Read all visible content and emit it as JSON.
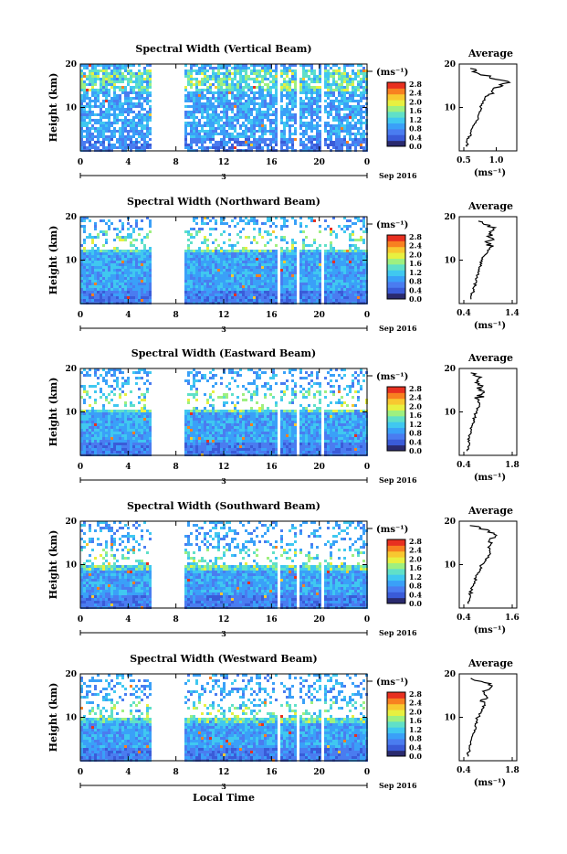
{
  "chart_data": [
    {
      "type": "heatmap",
      "title": "Spectral Width (Vertical Beam)",
      "ylabel": "Height (km)",
      "yticks": [
        "20",
        "10"
      ],
      "xticks": [
        "0",
        "4",
        "8",
        "12",
        "16",
        "20",
        "0"
      ],
      "date_day": "3",
      "date_label": "Sep 2016",
      "colorbar_unit": "(ms⁻¹)",
      "colorbar_ticks": [
        "2.8",
        "2.4",
        "2.0",
        "1.6",
        "1.2",
        "0.8",
        "0.4",
        "0.0"
      ],
      "average_title": "Average",
      "average_xticks": [
        "0.5",
        "1.0"
      ],
      "average_xlabel": "(ms⁻¹)",
      "average_yticks": [
        "20",
        "10"
      ],
      "x_gaps_hours": [
        [
          5.9,
          8.7
        ],
        [
          16.3,
          16.6
        ],
        [
          17.9,
          18.3
        ],
        [
          20.1,
          20.4
        ]
      ],
      "average_profile": {
        "xlim": [
          0.5,
          1.25
        ],
        "height_km": [
          1,
          2,
          3,
          4,
          5,
          6,
          7,
          8,
          9,
          10,
          11,
          12,
          13,
          14,
          15,
          16,
          17,
          18,
          19
        ],
        "width_ms": [
          0.55,
          0.54,
          0.58,
          0.6,
          0.62,
          0.66,
          0.7,
          0.72,
          0.74,
          0.76,
          0.8,
          0.82,
          0.88,
          0.95,
          1.1,
          1.18,
          0.9,
          0.7,
          0.6
        ]
      },
      "top_band_km": 15,
      "avg_xmin_tick_frac": 0.0,
      "avg_xmax_tick_frac": 0.67
    },
    {
      "type": "heatmap",
      "title": "Spectral Width (Northward Beam)",
      "ylabel": "Height (km)",
      "yticks": [
        "20",
        "10"
      ],
      "xticks": [
        "0",
        "4",
        "8",
        "12",
        "16",
        "20",
        "0"
      ],
      "date_day": "3",
      "date_label": "Sep 2016",
      "colorbar_unit": "(ms⁻¹)",
      "colorbar_ticks": [
        "2.8",
        "2.4",
        "2.0",
        "1.6",
        "1.2",
        "0.8",
        "0.4",
        "0.0"
      ],
      "average_title": "Average",
      "average_xticks": [
        "0.4",
        "1.4"
      ],
      "average_xlabel": "(ms⁻¹)",
      "average_yticks": [
        "20",
        "10"
      ],
      "x_gaps_hours": [
        [
          5.9,
          8.7
        ],
        [
          16.3,
          16.6
        ],
        [
          17.9,
          18.3
        ],
        [
          20.1,
          20.4
        ]
      ],
      "average_profile": {
        "xlim": [
          0.4,
          1.4
        ],
        "height_km": [
          1,
          2,
          3,
          4,
          5,
          6,
          7,
          8,
          9,
          10,
          11,
          12,
          13,
          14,
          15,
          16,
          17,
          18,
          19
        ],
        "width_ms": [
          0.55,
          0.56,
          0.6,
          0.62,
          0.66,
          0.68,
          0.7,
          0.72,
          0.74,
          0.76,
          0.82,
          0.9,
          0.95,
          0.88,
          1.0,
          0.92,
          1.02,
          0.95,
          0.7
        ]
      },
      "top_band_km": 13,
      "avg_xmin_tick_frac": 0.0,
      "avg_xmax_tick_frac": 1.0
    },
    {
      "type": "heatmap",
      "title": "Spectral Width (Eastward Beam)",
      "ylabel": "Height (km)",
      "yticks": [
        "20",
        "10"
      ],
      "xticks": [
        "0",
        "4",
        "8",
        "12",
        "16",
        "20",
        "0"
      ],
      "date_day": "3",
      "date_label": "Sep 2016",
      "colorbar_unit": "(ms⁻¹)",
      "colorbar_ticks": [
        "2.8",
        "2.4",
        "2.0",
        "1.6",
        "1.2",
        "0.8",
        "0.4",
        "0.0"
      ],
      "average_title": "Average",
      "average_xticks": [
        "0.4",
        "1.8"
      ],
      "average_xlabel": "(ms⁻¹)",
      "average_yticks": [
        "20",
        "10"
      ],
      "x_gaps_hours": [
        [
          5.9,
          8.7
        ],
        [
          16.3,
          16.6
        ],
        [
          17.9,
          18.3
        ],
        [
          20.1,
          20.4
        ]
      ],
      "average_profile": {
        "xlim": [
          0.4,
          1.8
        ],
        "height_km": [
          1,
          2,
          3,
          4,
          5,
          6,
          7,
          8,
          9,
          10,
          11,
          12,
          13,
          14,
          15,
          16,
          17,
          18,
          19
        ],
        "width_ms": [
          0.5,
          0.52,
          0.55,
          0.56,
          0.6,
          0.62,
          0.65,
          0.68,
          0.72,
          0.76,
          0.82,
          0.86,
          0.8,
          0.92,
          0.84,
          0.95,
          0.82,
          0.9,
          0.6
        ]
      },
      "top_band_km": 11,
      "avg_xmin_tick_frac": 0.0,
      "avg_xmax_tick_frac": 1.0
    },
    {
      "type": "heatmap",
      "title": "Spectral Width (Southward Beam)",
      "ylabel": "Height (km)",
      "yticks": [
        "20",
        "10"
      ],
      "xticks": [
        "0",
        "4",
        "8",
        "12",
        "16",
        "20",
        "0"
      ],
      "date_day": "3",
      "date_label": "Sep 2016",
      "colorbar_unit": "(ms⁻¹)",
      "colorbar_ticks": [
        "2.8",
        "2.4",
        "2.0",
        "1.6",
        "1.2",
        "0.8",
        "0.4",
        "0.0"
      ],
      "average_title": "Average",
      "average_xticks": [
        "0.4",
        "1.6"
      ],
      "average_xlabel": "(ms⁻¹)",
      "average_yticks": [
        "20",
        "10"
      ],
      "x_gaps_hours": [
        [
          5.9,
          8.7
        ],
        [
          16.3,
          16.6
        ],
        [
          17.9,
          18.3
        ],
        [
          20.1,
          20.4
        ]
      ],
      "average_profile": {
        "xlim": [
          0.4,
          1.6
        ],
        "height_km": [
          1,
          2,
          3,
          4,
          5,
          6,
          7,
          8,
          9,
          10,
          11,
          12,
          13,
          14,
          15,
          16,
          17,
          18,
          19
        ],
        "width_ms": [
          0.52,
          0.54,
          0.56,
          0.58,
          0.62,
          0.66,
          0.7,
          0.74,
          0.8,
          0.85,
          0.95,
          1.0,
          1.05,
          1.0,
          1.1,
          1.05,
          1.15,
          1.0,
          0.55
        ]
      },
      "top_band_km": 10,
      "avg_xmin_tick_frac": 0.0,
      "avg_xmax_tick_frac": 1.0
    },
    {
      "type": "heatmap",
      "title": "Spectral Width (Westward Beam)",
      "ylabel": "Height (km)",
      "yticks": [
        "20",
        "10"
      ],
      "xticks": [
        "0",
        "4",
        "8",
        "12",
        "16",
        "20",
        "0"
      ],
      "date_day": "3",
      "date_label": "Sep 2016",
      "colorbar_unit": "(ms⁻¹)",
      "colorbar_ticks": [
        "2.8",
        "2.4",
        "2.0",
        "1.6",
        "1.2",
        "0.8",
        "0.4",
        "0.0"
      ],
      "average_title": "Average",
      "average_xticks": [
        "0.4",
        "1.8"
      ],
      "average_xlabel": "(ms⁻¹)",
      "average_yticks": [
        "20",
        "10"
      ],
      "xlabel": "Local Time",
      "x_gaps_hours": [
        [
          5.9,
          8.7
        ],
        [
          16.3,
          16.6
        ],
        [
          17.9,
          18.3
        ],
        [
          20.1,
          20.4
        ]
      ],
      "average_profile": {
        "xlim": [
          0.4,
          1.8
        ],
        "height_km": [
          1,
          2,
          3,
          4,
          5,
          6,
          7,
          8,
          9,
          10,
          11,
          12,
          13,
          14,
          15,
          16,
          17,
          18,
          19
        ],
        "width_ms": [
          0.52,
          0.54,
          0.56,
          0.6,
          0.62,
          0.66,
          0.7,
          0.72,
          0.76,
          0.8,
          0.9,
          0.95,
          1.0,
          0.9,
          1.05,
          0.95,
          1.2,
          1.0,
          0.6
        ]
      },
      "top_band_km": 10,
      "avg_xmin_tick_frac": 0.0,
      "avg_xmax_tick_frac": 1.0
    }
  ],
  "colors": {
    "colorscale": [
      "#2a2a6e",
      "#3a5bd8",
      "#4a7cf0",
      "#3aa0f8",
      "#40c8f0",
      "#60e0c8",
      "#9ef080",
      "#e8f040",
      "#f8c830",
      "#f88020",
      "#e83020"
    ]
  }
}
